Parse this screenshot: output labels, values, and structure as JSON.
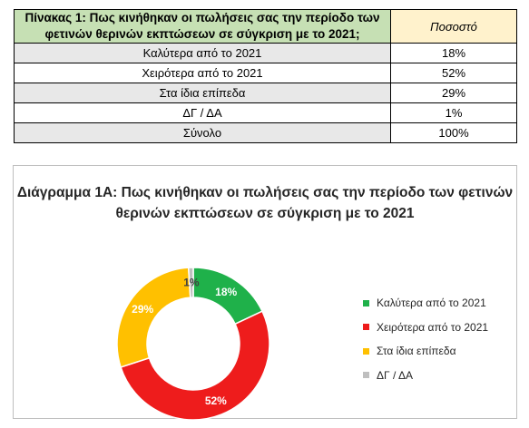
{
  "table": {
    "header_question": "Πίνακας 1: Πως κινήθηκαν οι πωλήσεις σας την περίοδο των φετινών θερινών εκπτώσεων σε σύγκριση με το 2021;",
    "header_percent": "Ποσοστό",
    "rows": [
      {
        "label": "Καλύτερα από το 2021",
        "value": "18%"
      },
      {
        "label": "Χειρότερα από το 2021",
        "value": "52%"
      },
      {
        "label": "Στα ίδια επίπεδα",
        "value": "29%"
      },
      {
        "label": "ΔΓ / ΔΑ",
        "value": "1%"
      },
      {
        "label": "Σύνολο",
        "value": "100%"
      }
    ]
  },
  "chart_data": {
    "type": "pie",
    "title": "Διάγραμμα 1Α: Πως κινήθηκαν οι πωλήσεις σας την περίοδο των φετινών θερινών εκπτώσεων σε σύγκριση με το 2021",
    "categories": [
      "Καλύτερα από το 2021",
      "Χειρότερα από το 2021",
      "Στα ίδια επίπεδα",
      "ΔΓ / ΔΑ"
    ],
    "values": [
      18,
      52,
      29,
      1
    ],
    "data_labels": [
      "18%",
      "52%",
      "29%",
      "1%"
    ],
    "colors": [
      "#1fb14a",
      "#ee1c1c",
      "#ffc000",
      "#bfbfbf"
    ],
    "label_colors": [
      "#ffffff",
      "#ffffff",
      "#ffffff",
      "#404040"
    ],
    "donut": true,
    "legend_position": "right"
  }
}
